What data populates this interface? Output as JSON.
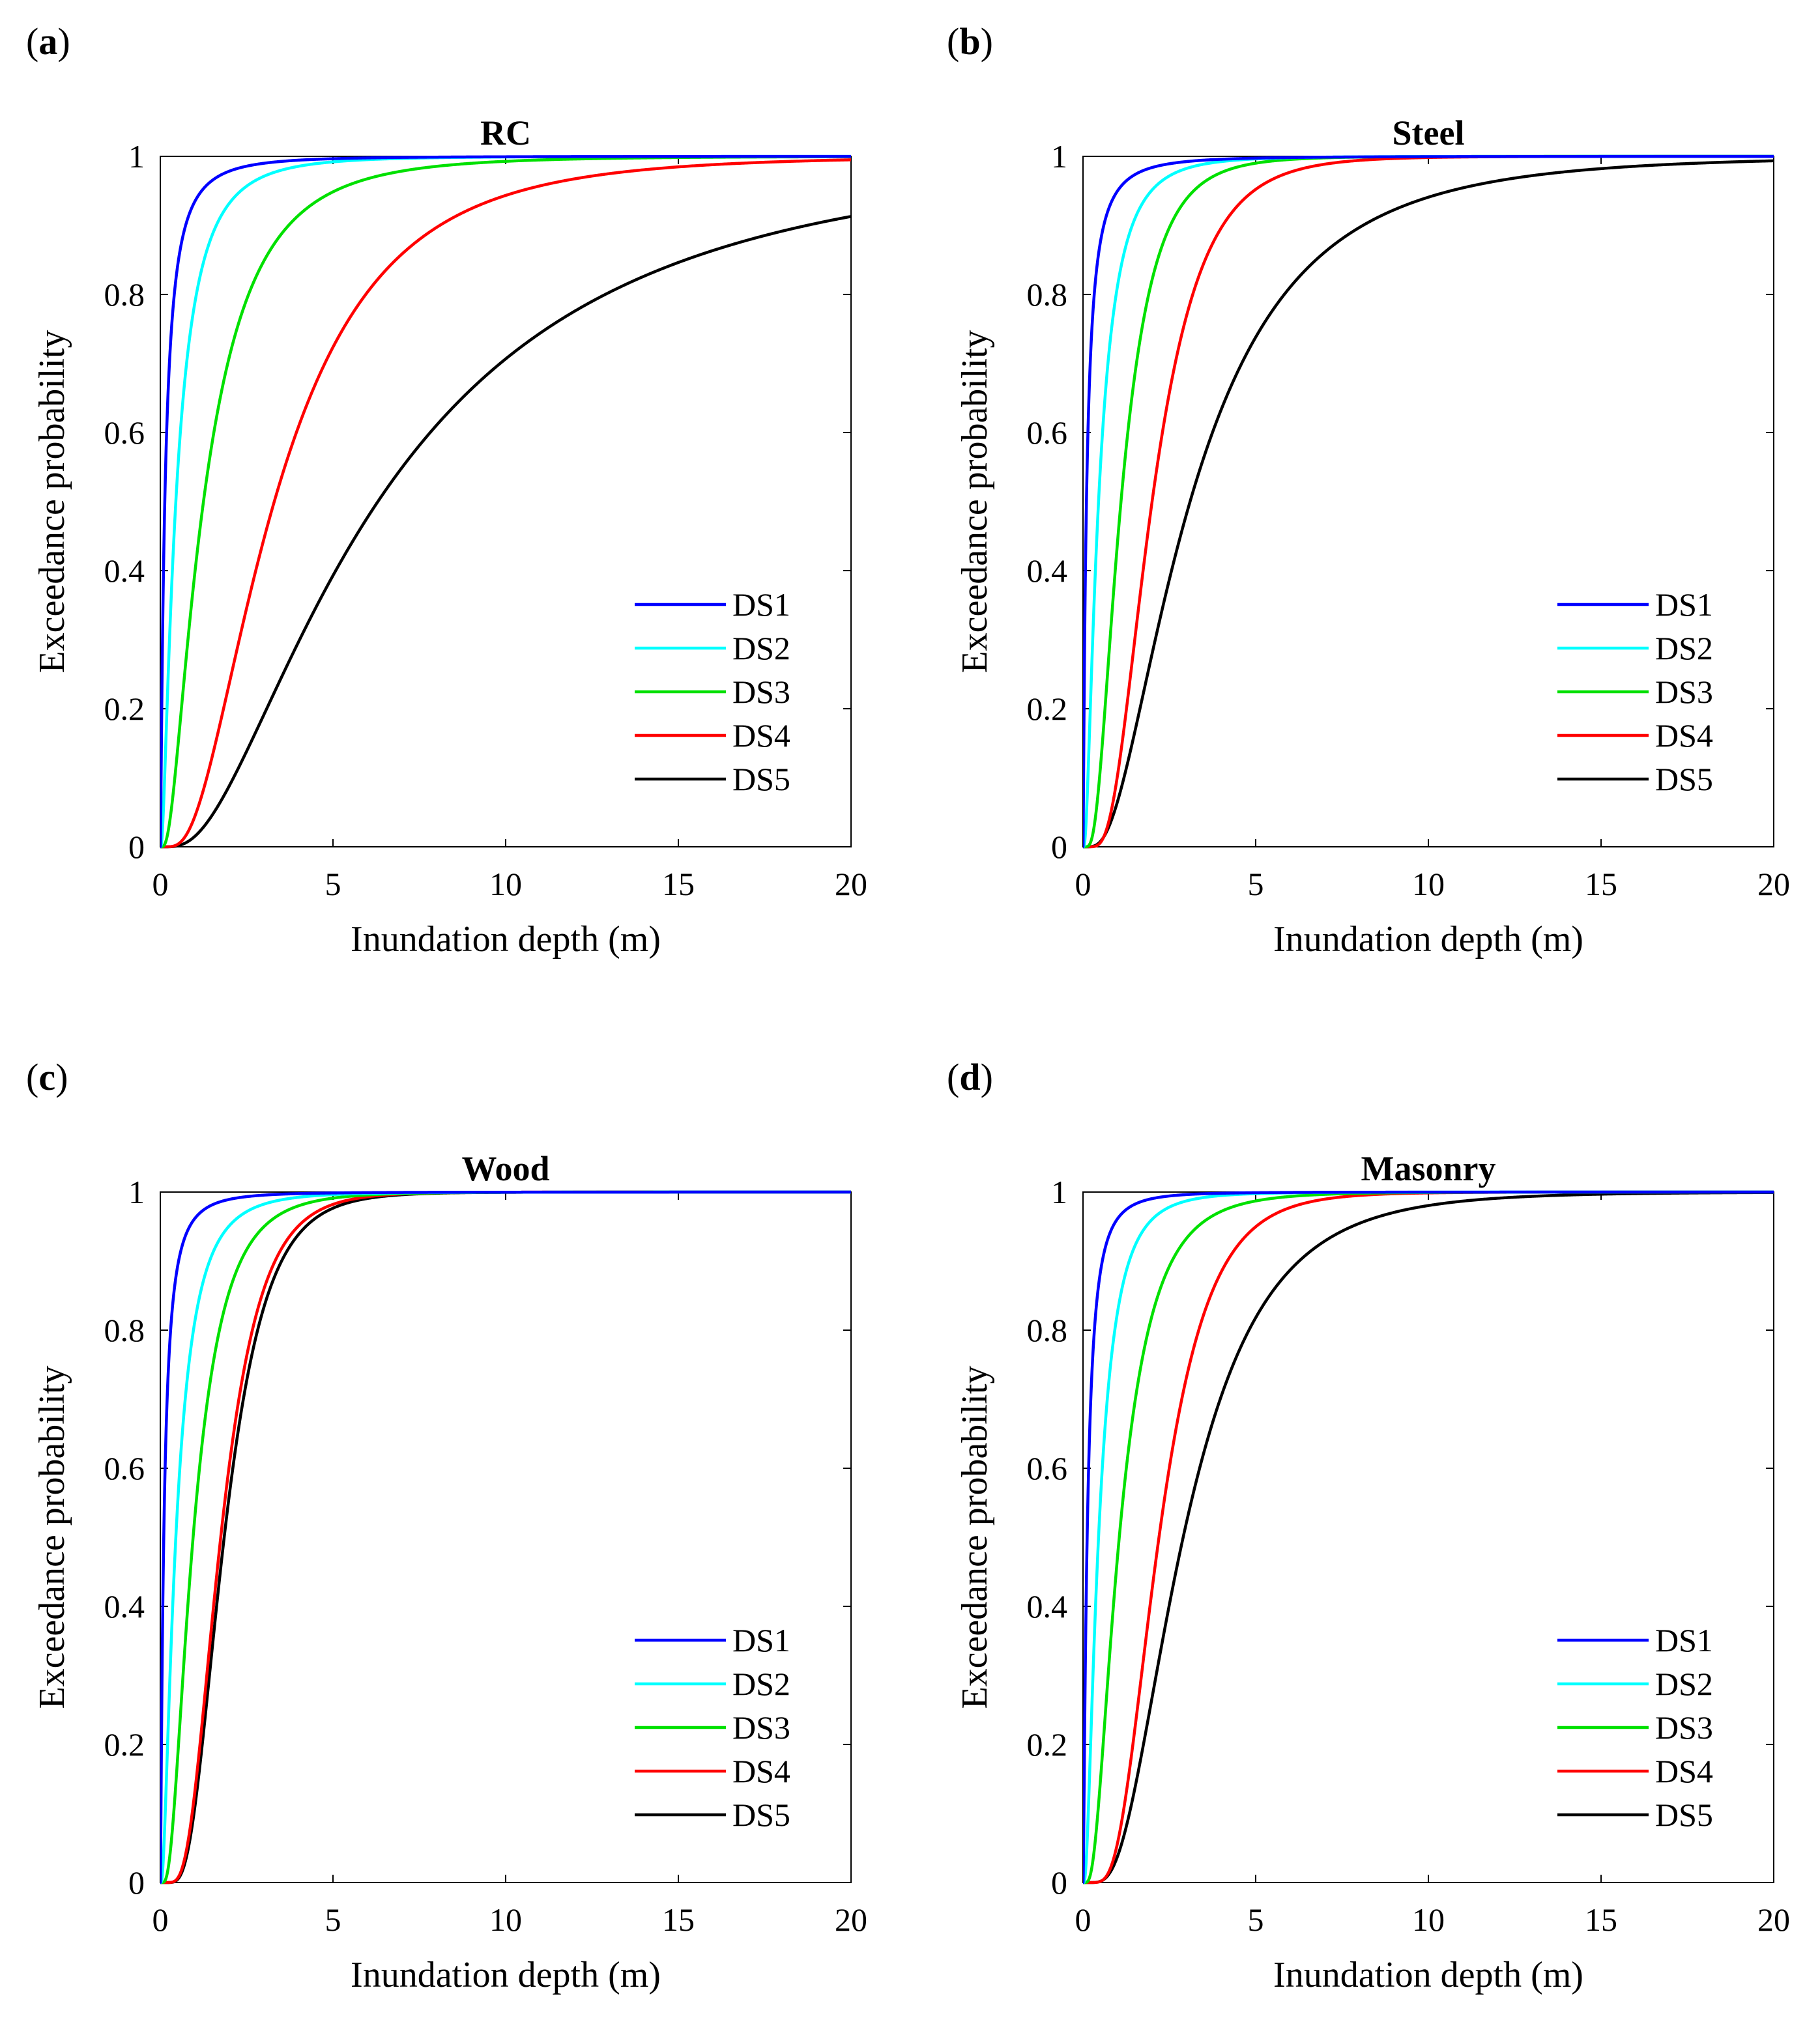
{
  "chart_data": [
    {
      "type": "line",
      "panel_label": "a",
      "title": "RC",
      "xlabel": "Inundation depth (m)",
      "ylabel": "Exceedance probability",
      "xlim": [
        0,
        20
      ],
      "ylim": [
        0,
        1
      ],
      "xticks": [
        "0",
        "5",
        "10",
        "15",
        "20"
      ],
      "yticks": [
        "0",
        "0.2",
        "0.4",
        "0.6",
        "0.8",
        "1"
      ],
      "grid": false,
      "legend_position": "bottom-right",
      "model": "lognormal CDF; median in m, beta dimensionless",
      "series": [
        {
          "name": "DS1",
          "color": "#0000ff",
          "median": 0.13,
          "beta": 1.35
        },
        {
          "name": "DS2",
          "color": "#00ffff",
          "median": 0.45,
          "beta": 1.0
        },
        {
          "name": "DS3",
          "color": "#00e000",
          "median": 1.25,
          "beta": 0.85
        },
        {
          "name": "DS4",
          "color": "#ff0000",
          "median": 3.3,
          "beta": 0.7
        },
        {
          "name": "DS5",
          "color": "#000000",
          "median": 6.3,
          "beta": 0.85
        }
      ]
    },
    {
      "type": "line",
      "panel_label": "b",
      "title": "Steel",
      "xlabel": "Inundation depth (m)",
      "ylabel": "Exceedance probability",
      "xlim": [
        0,
        20
      ],
      "ylim": [
        0,
        1
      ],
      "xticks": [
        "0",
        "5",
        "10",
        "15",
        "20"
      ],
      "yticks": [
        "0",
        "0.2",
        "0.4",
        "0.6",
        "0.8",
        "1"
      ],
      "grid": false,
      "legend_position": "bottom-right",
      "model": "lognormal CDF; median in m, beta dimensionless",
      "series": [
        {
          "name": "DS1",
          "color": "#0000ff",
          "median": 0.1,
          "beta": 1.4
        },
        {
          "name": "DS2",
          "color": "#00ffff",
          "median": 0.45,
          "beta": 0.9
        },
        {
          "name": "DS3",
          "color": "#00e000",
          "median": 1.1,
          "beta": 0.65
        },
        {
          "name": "DS4",
          "color": "#ff0000",
          "median": 2.0,
          "beta": 0.55
        },
        {
          "name": "DS5",
          "color": "#000000",
          "median": 3.1,
          "beta": 0.75
        }
      ]
    },
    {
      "type": "line",
      "panel_label": "c",
      "title": "Wood",
      "xlabel": "Inundation depth (m)",
      "ylabel": "Exceedance probability",
      "xlim": [
        0,
        20
      ],
      "ylim": [
        0,
        1
      ],
      "xticks": [
        "0",
        "5",
        "10",
        "15",
        "20"
      ],
      "yticks": [
        "0",
        "0.2",
        "0.4",
        "0.6",
        "0.8",
        "1"
      ],
      "grid": false,
      "legend_position": "bottom-right",
      "model": "lognormal CDF; median in m, beta dimensionless",
      "series": [
        {
          "name": "DS1",
          "color": "#0000ff",
          "median": 0.1,
          "beta": 1.3
        },
        {
          "name": "DS2",
          "color": "#00ffff",
          "median": 0.45,
          "beta": 0.9
        },
        {
          "name": "DS3",
          "color": "#00e000",
          "median": 0.95,
          "beta": 0.7
        },
        {
          "name": "DS4",
          "color": "#ff0000",
          "median": 1.75,
          "beta": 0.5
        },
        {
          "name": "DS5",
          "color": "#000000",
          "median": 1.85,
          "beta": 0.5
        }
      ]
    },
    {
      "type": "line",
      "panel_label": "d",
      "title": "Masonry",
      "xlabel": "Inundation depth (m)",
      "ylabel": "Exceedance probability",
      "xlim": [
        0,
        20
      ],
      "ylim": [
        0,
        1
      ],
      "xticks": [
        "0",
        "5",
        "10",
        "15",
        "20"
      ],
      "yticks": [
        "0",
        "0.2",
        "0.4",
        "0.6",
        "0.8",
        "1"
      ],
      "grid": false,
      "legend_position": "bottom-right",
      "model": "lognormal CDF; median in m, beta dimensionless",
      "series": [
        {
          "name": "DS1",
          "color": "#0000ff",
          "median": 0.12,
          "beta": 1.2
        },
        {
          "name": "DS2",
          "color": "#00ffff",
          "median": 0.45,
          "beta": 0.85
        },
        {
          "name": "DS3",
          "color": "#00e000",
          "median": 1.05,
          "beta": 0.7
        },
        {
          "name": "DS4",
          "color": "#ff0000",
          "median": 2.2,
          "beta": 0.5
        },
        {
          "name": "DS5",
          "color": "#000000",
          "median": 2.9,
          "beta": 0.6
        }
      ]
    }
  ]
}
